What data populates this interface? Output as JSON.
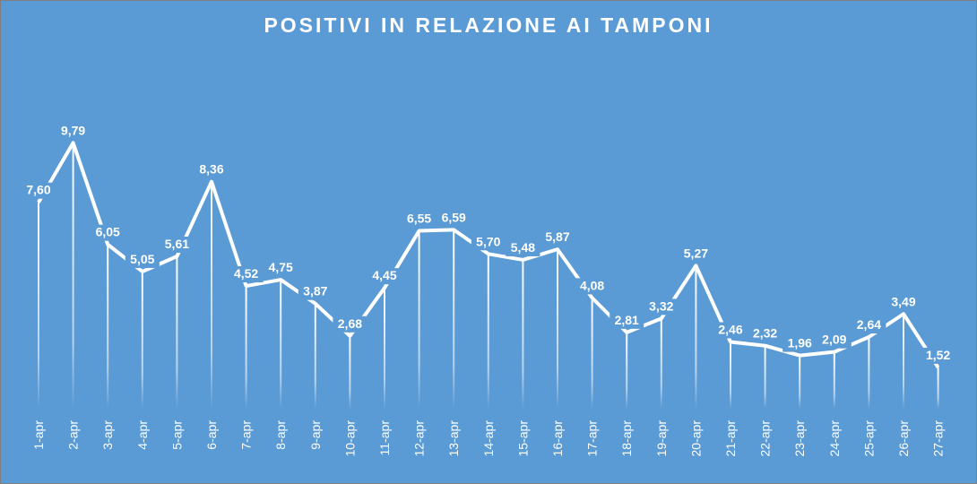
{
  "chart_data": {
    "type": "line",
    "title": "POSITIVI IN RELAZIONE AI TAMPONI",
    "categories": [
      "1-apr",
      "2-apr",
      "3-apr",
      "4-apr",
      "5-apr",
      "6-apr",
      "7-apr",
      "8-apr",
      "9-apr",
      "10-apr",
      "11-apr",
      "12-apr",
      "13-apr",
      "14-apr",
      "15-apr",
      "16-apr",
      "17-apr",
      "18-apr",
      "19-apr",
      "20-apr",
      "21-apr",
      "22-apr",
      "23-apr",
      "24-apr",
      "25-apr",
      "26-apr",
      "27-apr"
    ],
    "values": [
      7.6,
      9.79,
      6.05,
      5.05,
      5.61,
      8.36,
      4.52,
      4.75,
      3.87,
      2.68,
      4.45,
      6.55,
      6.59,
      5.7,
      5.48,
      5.87,
      4.08,
      2.81,
      3.32,
      5.27,
      2.46,
      2.32,
      1.96,
      2.09,
      2.64,
      3.49,
      1.52
    ],
    "data_labels": [
      "7,60",
      "9,79",
      "6,05",
      "5,05",
      "5,61",
      "8,36",
      "4,52",
      "4,75",
      "3,87",
      "2,68",
      "4,45",
      "6,55",
      "6,59",
      "5,70",
      "5,48",
      "5,87",
      "4,08",
      "2,81",
      "3,32",
      "5,27",
      "2,46",
      "2,32",
      "1,96",
      "2,09",
      "2,64",
      "3,49",
      "1,52"
    ],
    "xlabel": "",
    "ylabel": "",
    "ylim": [
      0,
      10.5
    ],
    "drop_lines": true,
    "grid": false,
    "legend": "none",
    "colors": {
      "background": "#5b9bd5",
      "line": "#ffffff",
      "text": "#ffffff"
    }
  }
}
